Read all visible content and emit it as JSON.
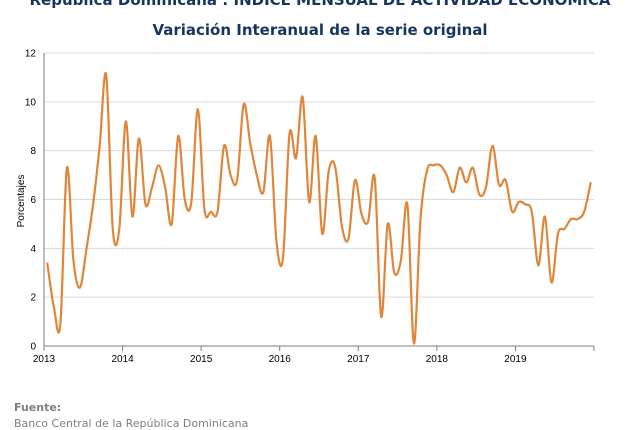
{
  "header": {
    "title": "República Dominicana : ÍNDICE MENSUAL DE ACTIVIDAD ECONÓMICA",
    "subtitle": "Variación Interanual de la serie original"
  },
  "footer": {
    "source_label": "Fuente:",
    "source_text": "Banco Central de la República Dominicana"
  },
  "chart_data": {
    "type": "line",
    "title": "República Dominicana : ÍNDICE MENSUAL DE ACTIVIDAD ECONÓMICA",
    "subtitle": "Variación Interanual de la serie original",
    "xlabel": "",
    "ylabel": "Porcentajes",
    "ylim": [
      0,
      12
    ],
    "yticks": [
      0,
      2,
      4,
      6,
      8,
      10,
      12
    ],
    "xticks": [
      "2013",
      "2014",
      "2015",
      "2016",
      "2017",
      "2018",
      "2019"
    ],
    "grid": true,
    "legend": "none",
    "x_start": "2013-01",
    "frequency": "monthly",
    "series": [
      {
        "color": "#e0863a",
        "values": [
          3.4,
          1.6,
          0.9,
          7.3,
          3.5,
          2.4,
          4.0,
          5.8,
          8.2,
          11.1,
          4.8,
          4.8,
          9.2,
          5.3,
          8.5,
          5.8,
          6.5,
          7.4,
          6.5,
          5.0,
          8.6,
          6.0,
          5.9,
          9.7,
          5.6,
          5.5,
          5.5,
          8.2,
          7.0,
          6.8,
          9.9,
          8.3,
          7.0,
          6.3,
          8.6,
          4.3,
          3.6,
          8.7,
          7.7,
          10.2,
          5.9,
          8.6,
          4.6,
          7.2,
          7.3,
          4.9,
          4.4,
          6.8,
          5.4,
          5.1,
          6.9,
          1.2,
          5.0,
          3.0,
          3.5,
          5.8,
          0.1,
          5.2,
          7.2,
          7.4,
          7.4,
          7.0,
          6.3,
          7.3,
          6.7,
          7.3,
          6.2,
          6.5,
          8.2,
          6.6,
          6.8,
          5.5,
          5.9,
          5.8,
          5.5,
          3.3,
          5.3,
          2.6,
          4.6,
          4.8,
          5.2,
          5.2,
          5.5,
          6.7
        ]
      }
    ]
  }
}
